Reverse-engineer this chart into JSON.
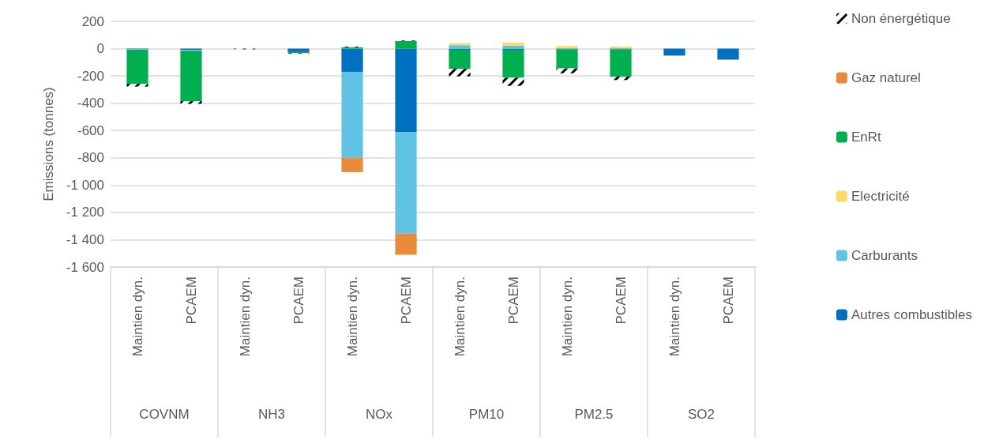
{
  "chart_data": {
    "type": "bar",
    "stacked": true,
    "ylabel": "Emissions (tonnes)",
    "categories": [
      "Maintien dyn.",
      "PCAEM",
      "Maintien dyn.",
      "PCAEM",
      "Maintien dyn.",
      "PCAEM",
      "Maintien dyn.",
      "PCAEM",
      "Maintien dyn.",
      "PCAEM",
      "Maintien dyn.",
      "PCAEM"
    ],
    "annotations": [
      "COVNM",
      "NH3",
      "NOx",
      "PM10",
      "PM2.5",
      "SO2"
    ],
    "series": [
      {
        "name": "Autres combustibles",
        "color": "#0070c0",
        "values": [
          -3,
          -10,
          null,
          -25,
          -170,
          -610,
          -8,
          -8,
          -5,
          -5,
          -50,
          -80
        ]
      },
      {
        "name": "Carburants",
        "color": "#61c3e4",
        "values": [
          -5,
          -5,
          null,
          null,
          -630,
          -745,
          25,
          22,
          5,
          3,
          null,
          null
        ]
      },
      {
        "name": "Electricité",
        "color": "#ffd966",
        "values": [
          null,
          null,
          null,
          null,
          null,
          null,
          15,
          22,
          15,
          12,
          null,
          null
        ]
      },
      {
        "name": "EnRt",
        "color": "#00b050",
        "values": [
          -250,
          -370,
          null,
          -8,
          10,
          55,
          -140,
          -205,
          -140,
          -200,
          null,
          null
        ]
      },
      {
        "name": "Gaz naturel",
        "color": "#e98b3b",
        "values": [
          null,
          null,
          null,
          null,
          -105,
          -155,
          null,
          null,
          null,
          null,
          -3,
          -3
        ]
      },
      {
        "name": "Non énergétique",
        "color": "#000000",
        "values": [
          -20,
          -20,
          -5,
          -5,
          5,
          5,
          -55,
          -60,
          -35,
          -25,
          null,
          null
        ]
      }
    ],
    "ylim": [
      -1600,
      200
    ],
    "yticks": [
      200,
      0,
      -200,
      -400,
      -600,
      -800,
      {
        "value": -1000,
        "label": "-1 000"
      },
      {
        "value": -1200,
        "label": "-1 200"
      },
      {
        "value": -1400,
        "label": "-1 400"
      },
      {
        "value": -1600,
        "label": "-1 600"
      }
    ],
    "grid": "y",
    "legend": "right"
  }
}
